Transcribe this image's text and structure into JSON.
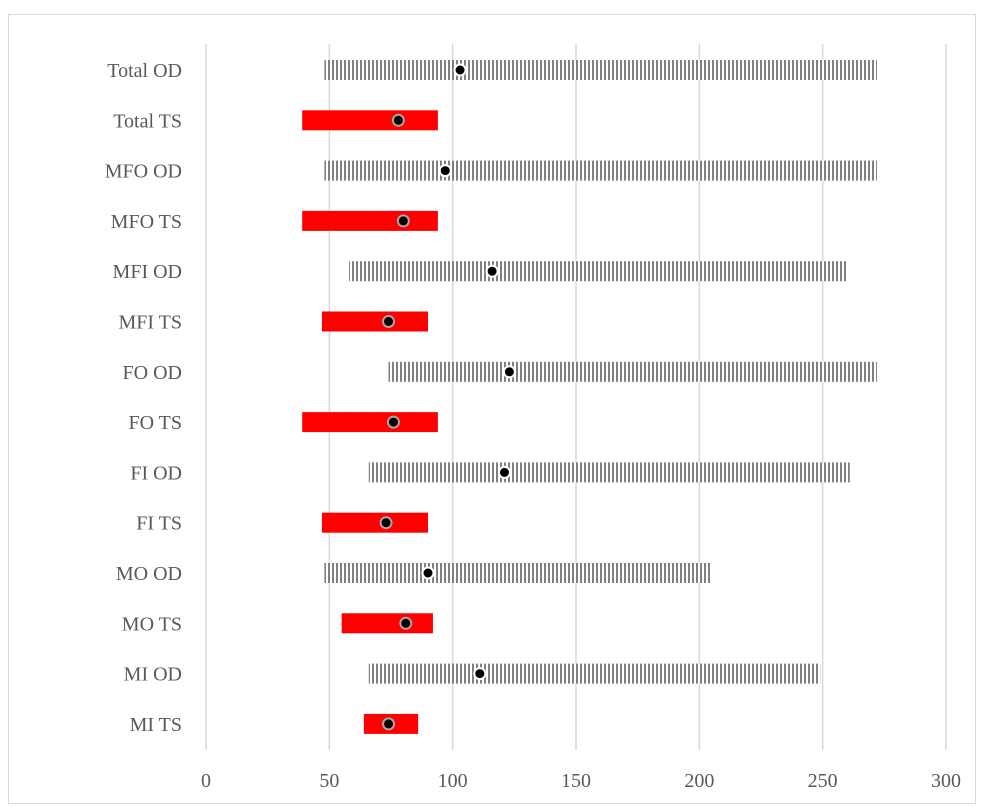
{
  "chart_data": {
    "type": "bar",
    "subtype": "floating-range-with-point",
    "orientation": "horizontal",
    "title": "",
    "xlabel": "",
    "ylabel": "",
    "xlim": [
      0,
      300
    ],
    "x_ticks": [
      "0",
      "50",
      "100",
      "150",
      "200",
      "250",
      "300"
    ],
    "grid": "vertical",
    "legend": "none",
    "categories": [
      "Total OD",
      "Total TS",
      "MFO OD",
      "MFO TS",
      "MFI OD",
      "MFI TS",
      "FO OD",
      "FO TS",
      "FI OD",
      "FI TS",
      "MO OD",
      "MO TS",
      "MI OD",
      "MI TS"
    ],
    "ranges": [
      {
        "category": "Total OD",
        "low": 48,
        "high": 272,
        "point": 103,
        "style": "hatched"
      },
      {
        "category": "Total TS",
        "low": 39,
        "high": 94,
        "point": 78,
        "style": "solid"
      },
      {
        "category": "MFO OD",
        "low": 48,
        "high": 272,
        "point": 97,
        "style": "hatched"
      },
      {
        "category": "MFO TS",
        "low": 39,
        "high": 94,
        "point": 80,
        "style": "solid"
      },
      {
        "category": "MFI OD",
        "low": 58,
        "high": 260,
        "point": 116,
        "style": "hatched"
      },
      {
        "category": "MFI TS",
        "low": 47,
        "high": 90,
        "point": 74,
        "style": "solid"
      },
      {
        "category": "FO OD",
        "low": 74,
        "high": 272,
        "point": 123,
        "style": "hatched"
      },
      {
        "category": "FO TS",
        "low": 39,
        "high": 94,
        "point": 76,
        "style": "solid"
      },
      {
        "category": "FI OD",
        "low": 66,
        "high": 261,
        "point": 121,
        "style": "hatched"
      },
      {
        "category": "FI TS",
        "low": 47,
        "high": 90,
        "point": 73,
        "style": "solid"
      },
      {
        "category": "MO OD",
        "low": 48,
        "high": 205,
        "point": 90,
        "style": "hatched"
      },
      {
        "category": "MO TS",
        "low": 55,
        "high": 92,
        "point": 81,
        "style": "solid"
      },
      {
        "category": "MI OD",
        "low": 66,
        "high": 249,
        "point": 111,
        "style": "hatched"
      },
      {
        "category": "MI TS",
        "low": 64,
        "high": 86,
        "point": 74,
        "style": "solid"
      }
    ],
    "colors": {
      "solid_bar": "#ff0000",
      "hatched_bar": "#808080",
      "point_fill": "#000000",
      "point_stroke_on_solid": "#a6a6a6",
      "gridline": "#d9d9d9",
      "label_text": "#595959"
    }
  }
}
